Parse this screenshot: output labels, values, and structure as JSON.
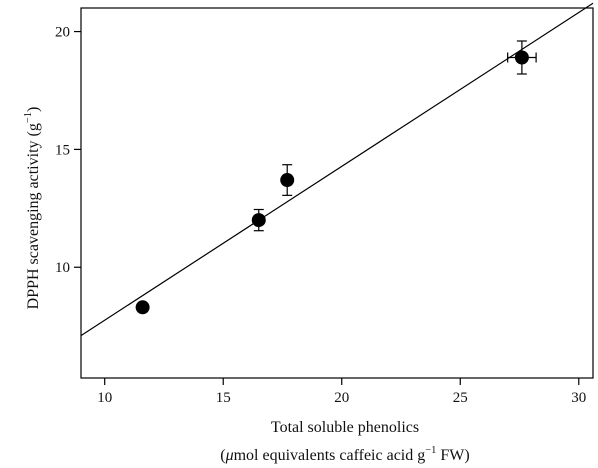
{
  "chart_data": {
    "type": "scatter",
    "title": "",
    "xlabel": {
      "line1": "Total soluble phenolics",
      "line2_pre": "(",
      "line2_mu": "μ",
      "line2_mid": "mol equivalents caffeic acid g",
      "line2_sup": "−1",
      "line2_post": " FW)"
    },
    "ylabel": {
      "pre": "DPPH scavenging activity (g",
      "sup": "−1",
      "post": ")"
    },
    "xlim": [
      9,
      30.6
    ],
    "ylim": [
      5.3,
      21
    ],
    "xticks": [
      10,
      15,
      20,
      25,
      30
    ],
    "yticks": [
      10,
      15,
      20
    ],
    "grid": false,
    "legend": "none",
    "series": [
      {
        "points": [
          {
            "x": 11.6,
            "y": 8.3,
            "yerr": 0.15,
            "xerr": 0
          },
          {
            "x": 16.5,
            "y": 12.0,
            "yerr": 0.45,
            "xerr": 0
          },
          {
            "x": 17.7,
            "y": 13.7,
            "yerr": 0.65,
            "xerr": 0
          },
          {
            "x": 27.6,
            "y": 18.9,
            "yerr": 0.7,
            "xerr": 0.6
          }
        ]
      }
    ],
    "fit_line": {
      "x": [
        9,
        30.6
      ],
      "y": [
        7.1,
        21.2
      ]
    },
    "colors": {
      "marker": "#000000",
      "line": "#000000",
      "axes": "#000000"
    }
  }
}
